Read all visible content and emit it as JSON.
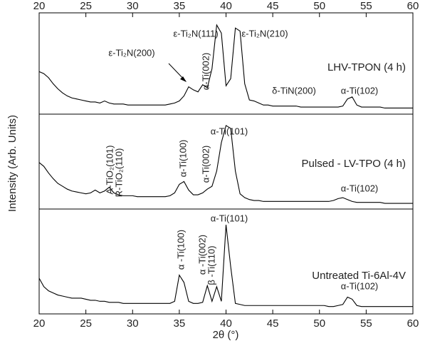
{
  "chart_data": {
    "type": "line",
    "xlabel": "2θ (°)",
    "ylabel": "Intensity (Arb. Units)",
    "xlim": [
      20,
      60
    ],
    "xticks": [
      20,
      25,
      30,
      35,
      40,
      45,
      50,
      55,
      60
    ],
    "x": [
      20,
      20.5,
      21,
      21.5,
      22,
      22.5,
      23,
      23.5,
      24,
      24.5,
      25,
      25.5,
      26,
      26.5,
      27,
      27.5,
      28,
      28.5,
      29,
      29.5,
      30,
      30.5,
      31,
      31.5,
      32,
      32.5,
      33,
      33.5,
      34,
      34.5,
      35,
      35.5,
      36,
      36.5,
      37,
      37.5,
      38,
      38.5,
      39,
      39.5,
      40,
      40.5,
      41,
      41.5,
      42,
      42.5,
      43,
      43.5,
      44,
      44.5,
      45,
      45.5,
      46,
      46.5,
      47,
      47.5,
      48,
      48.5,
      49,
      49.5,
      50,
      50.5,
      51,
      51.5,
      52,
      52.5,
      53,
      53.5,
      54,
      54.5,
      55,
      55.5,
      56,
      56.5,
      57,
      57.5,
      58,
      58.5,
      59,
      59.5,
      60
    ],
    "panels": [
      {
        "name": "LHV-TPON (4 h)",
        "color": "#000000",
        "ylim": [
          0,
          100
        ],
        "values": [
          42,
          40,
          36,
          30,
          25,
          21,
          18,
          16,
          15,
          14,
          13,
          12,
          12,
          11,
          13,
          11,
          10,
          10,
          10,
          9,
          9,
          9,
          9,
          9,
          9,
          9,
          9,
          9,
          10,
          11,
          13,
          18,
          27,
          24,
          22,
          29,
          26,
          45,
          88,
          80,
          28,
          35,
          85,
          82,
          30,
          14,
          13,
          11,
          9,
          9,
          8,
          8,
          8,
          8,
          8,
          8,
          7,
          7,
          7,
          7,
          7,
          7,
          7,
          7,
          7,
          8,
          15,
          17,
          9,
          7,
          7,
          7,
          7,
          7,
          6,
          6,
          6,
          6,
          6,
          6,
          6
        ],
        "annotations": [
          "ε-Ti₂N(200)",
          "α-Ti(002)",
          "ε-Ti₂N(111)",
          "ε-Ti₂N(210)",
          "δ-TiN(200)",
          "α-Ti(102)"
        ]
      },
      {
        "name": "Pulsed - LV-TPO (4 h)",
        "color": "#000000",
        "ylim": [
          0,
          100
        ],
        "values": [
          49,
          45,
          38,
          32,
          27,
          24,
          21,
          19,
          18,
          17,
          16,
          17,
          20,
          17,
          19,
          23,
          17,
          15,
          14,
          14,
          14,
          13,
          13,
          13,
          13,
          13,
          13,
          13,
          14,
          17,
          26,
          29,
          20,
          15,
          15,
          17,
          21,
          24,
          40,
          70,
          88,
          85,
          40,
          16,
          12,
          10,
          9,
          9,
          8,
          8,
          8,
          8,
          8,
          8,
          8,
          8,
          8,
          8,
          8,
          8,
          8,
          8,
          8,
          9,
          11,
          12,
          10,
          8,
          7,
          7,
          7,
          7,
          7,
          7,
          6,
          6,
          6,
          6,
          6,
          6,
          6
        ],
        "annotations": [
          "A-TiO₂(101)",
          "R-TiO₂(110)",
          "α-Ti(100)",
          "α-Ti(002)",
          "α-Ti(101)",
          "α-Ti(102)"
        ]
      },
      {
        "name": "Untreated Ti-6Al-4V",
        "color": "#000000",
        "ylim": [
          0,
          100
        ],
        "values": [
          34,
          26,
          22,
          20,
          18,
          17,
          16,
          15,
          15,
          15,
          14,
          13,
          13,
          12,
          12,
          11,
          11,
          11,
          10,
          10,
          10,
          10,
          10,
          10,
          10,
          10,
          10,
          10,
          10,
          12,
          37,
          30,
          12,
          10,
          10,
          11,
          27,
          12,
          26,
          12,
          85,
          45,
          10,
          9,
          8,
          8,
          8,
          8,
          8,
          8,
          8,
          8,
          8,
          8,
          8,
          8,
          8,
          8,
          8,
          8,
          8,
          8,
          7,
          7,
          8,
          9,
          16,
          14,
          8,
          7,
          7,
          7,
          7,
          7,
          7,
          7,
          7,
          7,
          7,
          7,
          7
        ],
        "annotations": [
          "α -Ti(100)",
          "α -Ti(002)",
          "β -Ti(110)",
          "α-Ti(101)",
          "α-Ti(102)"
        ]
      }
    ]
  }
}
